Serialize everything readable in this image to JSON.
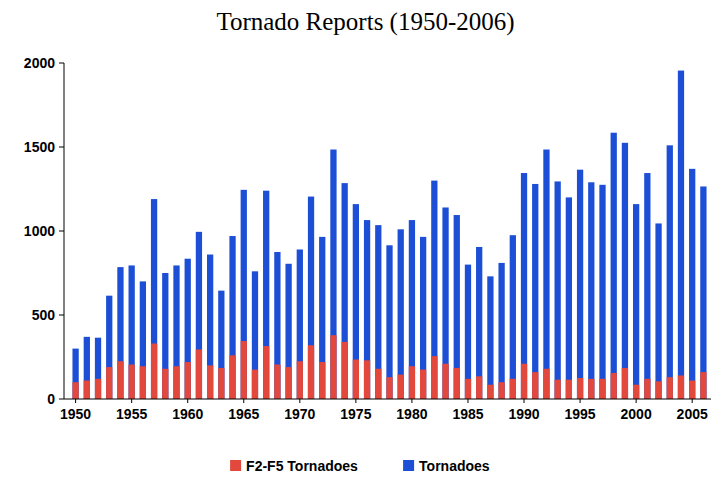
{
  "chart_data": {
    "type": "bar",
    "title": "Tornado Reports (1950-2006)",
    "categories": [
      "1950",
      null,
      null,
      null,
      null,
      "1955",
      null,
      null,
      null,
      null,
      "1960",
      null,
      null,
      null,
      null,
      "1965",
      null,
      null,
      null,
      null,
      "1970",
      null,
      null,
      null,
      null,
      "1975",
      null,
      null,
      null,
      null,
      "1980",
      null,
      null,
      null,
      null,
      "1985",
      null,
      null,
      null,
      null,
      "1990",
      null,
      null,
      null,
      null,
      "1995",
      null,
      null,
      null,
      null,
      "2000",
      null,
      null,
      null,
      null,
      "2005",
      null
    ],
    "series": [
      {
        "name": "F2-F5 Tornadoes",
        "color": "#e2483c",
        "values": [
          100,
          110,
          120,
          190,
          225,
          205,
          195,
          330,
          180,
          195,
          220,
          295,
          200,
          185,
          260,
          345,
          175,
          315,
          205,
          190,
          225,
          320,
          220,
          380,
          340,
          235,
          230,
          180,
          130,
          145,
          195,
          175,
          255,
          210,
          185,
          120,
          135,
          85,
          100,
          120,
          210,
          160,
          180,
          115,
          115,
          125,
          120,
          120,
          155,
          185,
          85,
          120,
          105,
          130,
          140,
          110,
          160
        ]
      },
      {
        "name": "Tornadoes",
        "color": "#1c4fd6",
        "values": [
          300,
          370,
          365,
          615,
          785,
          795,
          700,
          1190,
          750,
          795,
          835,
          995,
          860,
          645,
          970,
          1245,
          760,
          1240,
          875,
          805,
          890,
          1205,
          965,
          1485,
          1285,
          1160,
          1065,
          1035,
          915,
          1010,
          1065,
          965,
          1300,
          1140,
          1095,
          800,
          905,
          730,
          810,
          975,
          1345,
          1280,
          1485,
          1295,
          1200,
          1365,
          1290,
          1275,
          1585,
          1525,
          1160,
          1345,
          1045,
          1510,
          1955,
          1370,
          1265
        ]
      }
    ],
    "ylim": [
      0,
      2000
    ],
    "yticks": [
      0,
      500,
      1000,
      1500,
      2000
    ],
    "stacked": false,
    "grid": false,
    "legend": "bottom"
  }
}
